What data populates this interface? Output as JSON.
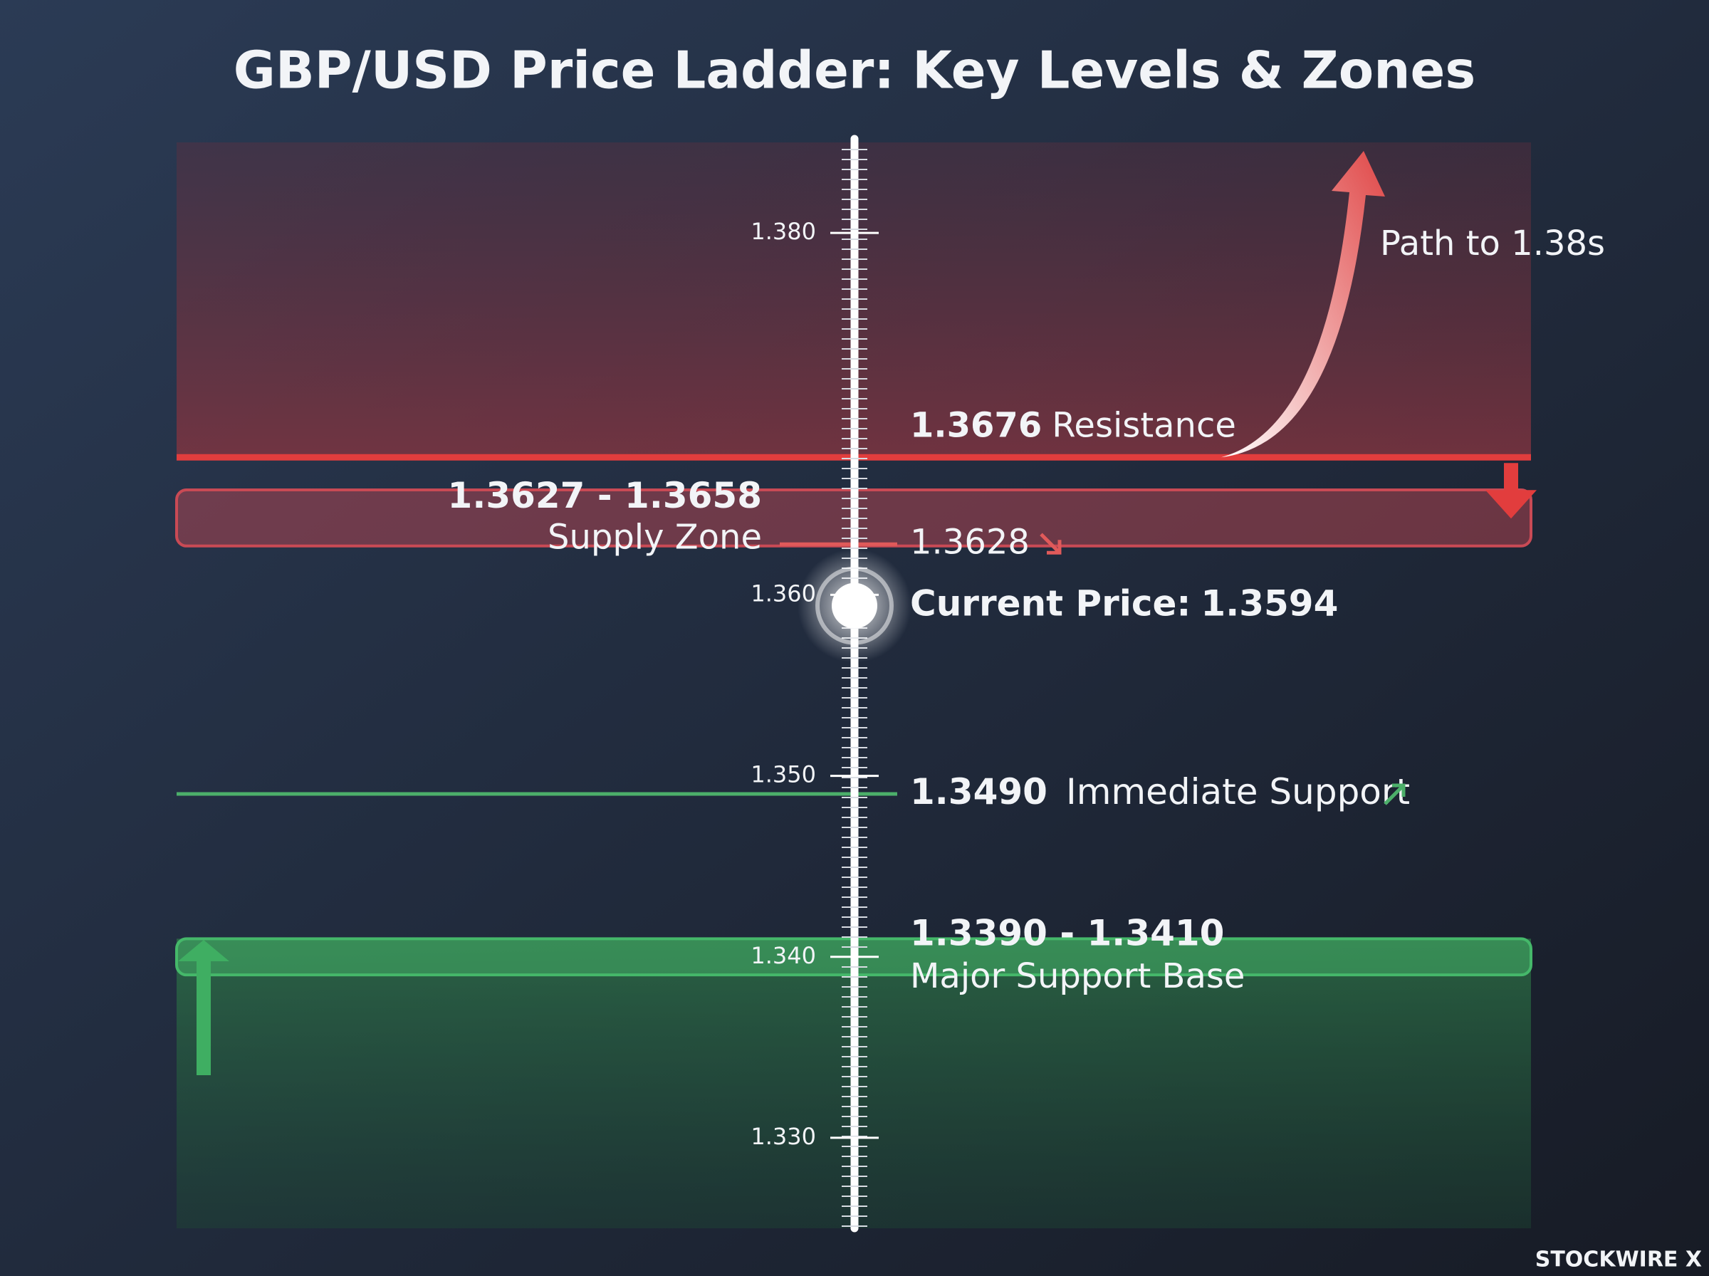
{
  "chart_data": {
    "type": "ladder",
    "title": "GBP/USD Price Ladder: Key Levels & Zones",
    "ylim": [
      1.325,
      1.385
    ],
    "yticks": [
      {
        "value": 1.38,
        "label": "1.380"
      },
      {
        "value": 1.36,
        "label": "1.360"
      },
      {
        "value": 1.35,
        "label": "1.350"
      },
      {
        "value": 1.34,
        "label": "1.340"
      },
      {
        "value": 1.33,
        "label": "1.330"
      }
    ],
    "resistance": {
      "value": 1.3676,
      "label": "Resistance",
      "color": "#e23d3d"
    },
    "supply_zone": {
      "values": [
        1.3627,
        1.3658
      ],
      "range_label": "1.3627 - 1.3658",
      "label": "Supply Zone",
      "color": "#c94a55"
    },
    "supply_level": {
      "value": 1.3628,
      "color": "#e05a5a"
    },
    "current_price": {
      "label": "Current Price:",
      "value": 1.3594
    },
    "immediate_support": {
      "value": 1.349,
      "value_label": "1.3490",
      "label": "Immediate Support",
      "color": "#4caf6a"
    },
    "support_zone": {
      "values": [
        1.339,
        1.341
      ],
      "range_label": "1.3390 - 1.3410",
      "label": "Major Support Base",
      "color": "#45b86a"
    },
    "annotation": "Path to 1.38s",
    "watermark": "STOCKWIRE X"
  }
}
